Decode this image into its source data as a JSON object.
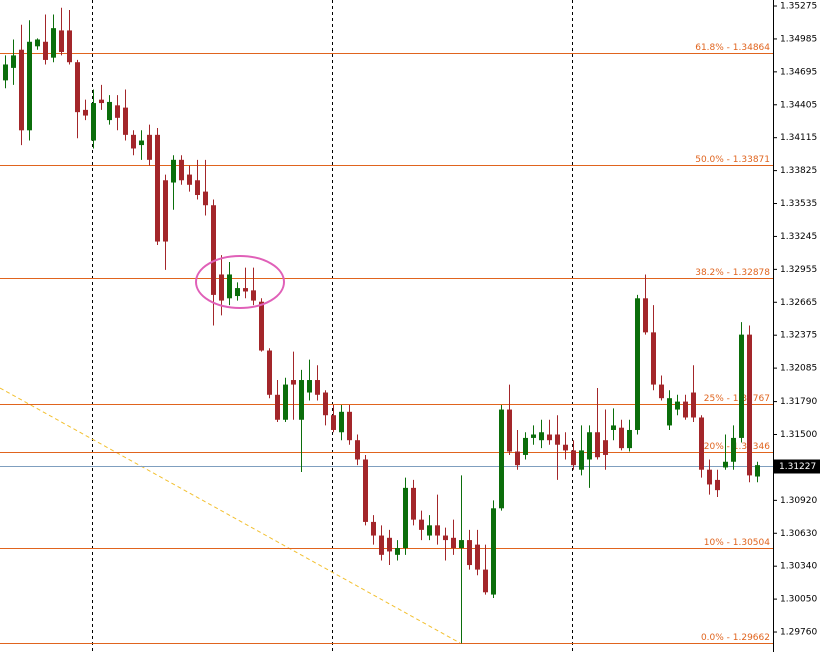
{
  "chart_data": {
    "type": "candlestick",
    "ylim": [
      1.29584,
      1.35328
    ],
    "yticks": [
      1.35275,
      1.34985,
      1.34695,
      1.34405,
      1.34115,
      1.33825,
      1.33535,
      1.33245,
      1.32955,
      1.32665,
      1.32375,
      1.32085,
      {
        "value": 1.3179,
        "label": "1.31790"
      },
      {
        "value": 1.315,
        "label": "1.31500"
      },
      {
        "value": 1.3092,
        "label": "1.30920"
      },
      {
        "value": 1.3063,
        "label": "1.30630"
      },
      {
        "value": 1.3034,
        "label": "1.30340"
      },
      {
        "value": 1.3005,
        "label": "1.30050"
      },
      {
        "value": 1.2976,
        "label": "1.29760"
      }
    ],
    "up_color": "#0b6e0b",
    "down_color": "#a3262a",
    "level_color": "#e0641e",
    "levels": [
      {
        "value": 1.34864,
        "label": "61.8% - 1.34864"
      },
      {
        "value": 1.33871,
        "label": "50.0% - 1.33871"
      },
      {
        "value": 1.32878,
        "label": "38.2% - 1.32878"
      },
      {
        "value": 1.31767,
        "label": "25% - 1.31767"
      },
      {
        "value": 1.31346,
        "label": "20% - 1.31346"
      },
      {
        "value": 1.30504,
        "label": "10% - 1.30504"
      },
      {
        "value": 1.29662,
        "label": "0.0% - 1.29662"
      }
    ],
    "current_price": 1.31227,
    "current_price_color": "#7f9fbf",
    "ohlc": [
      [
        1.3462,
        1.3484,
        1.3455,
        1.3476
      ],
      [
        1.3473,
        1.3498,
        1.3458,
        1.3484
      ],
      [
        1.3489,
        1.3511,
        1.3405,
        1.3418
      ],
      [
        1.3418,
        1.3515,
        1.3409,
        1.3496
      ],
      [
        1.3492,
        1.3499,
        1.3489,
        1.3498
      ],
      [
        1.3496,
        1.352,
        1.3476,
        1.348
      ],
      [
        1.3482,
        1.352,
        1.3478,
        1.3508
      ],
      [
        1.3506,
        1.3526,
        1.3484,
        1.3487
      ],
      [
        1.3506,
        1.3524,
        1.3476,
        1.3478
      ],
      [
        1.3478,
        1.348,
        1.3411,
        1.3434
      ],
      [
        1.3436,
        1.3445,
        1.3427,
        1.3431
      ],
      [
        1.3409,
        1.3454,
        1.3402,
        1.3442
      ],
      [
        1.3445,
        1.3458,
        1.3436,
        1.3442
      ],
      [
        1.3427,
        1.3449,
        1.3423,
        1.3443
      ],
      [
        1.344,
        1.3449,
        1.3418,
        1.3429
      ],
      [
        1.3438,
        1.3454,
        1.3409,
        1.3414
      ],
      [
        1.3414,
        1.3418,
        1.3396,
        1.3402
      ],
      [
        1.3405,
        1.3418,
        1.3392,
        1.3409
      ],
      [
        1.3414,
        1.3423,
        1.3387,
        1.3392
      ],
      [
        1.3414,
        1.342,
        1.3317,
        1.332
      ],
      [
        1.3374,
        1.3379,
        1.3295,
        1.332
      ],
      [
        1.3372,
        1.3396,
        1.3348,
        1.3392
      ],
      [
        1.3392,
        1.3396,
        1.337,
        1.3374
      ],
      [
        1.3379,
        1.3387,
        1.3364,
        1.337
      ],
      [
        1.3374,
        1.3392,
        1.3357,
        1.3361
      ],
      [
        1.3364,
        1.3392,
        1.3343,
        1.3352
      ],
      [
        1.3352,
        1.3357,
        1.3246,
        1.3273
      ],
      [
        1.3291,
        1.3308,
        1.3255,
        1.3268
      ],
      [
        1.327,
        1.3302,
        1.3264,
        1.3291
      ],
      [
        1.3272,
        1.3284,
        1.3268,
        1.3279
      ],
      [
        1.3279,
        1.3297,
        1.327,
        1.3276
      ],
      [
        1.3277,
        1.3297,
        1.3264,
        1.3268
      ],
      [
        1.3267,
        1.327,
        1.3223,
        1.3224
      ],
      [
        1.3224,
        1.3226,
        1.3182,
        1.3185
      ],
      [
        1.3185,
        1.3198,
        1.3161,
        1.3163
      ],
      [
        1.3163,
        1.32,
        1.3161,
        1.3194
      ],
      [
        1.3198,
        1.3223,
        1.3163,
        1.3194
      ],
      [
        1.3163,
        1.3207,
        1.3117,
        1.3198
      ],
      [
        1.3187,
        1.3216,
        1.318,
        1.3198
      ],
      [
        1.3198,
        1.3211,
        1.318,
        1.3185
      ],
      [
        1.3187,
        1.3189,
        1.3158,
        1.3167
      ],
      [
        1.3167,
        1.3176,
        1.3152,
        1.3154
      ],
      [
        1.3152,
        1.3176,
        1.3145,
        1.317
      ],
      [
        1.317,
        1.3176,
        1.3141,
        1.3145
      ],
      [
        1.3145,
        1.315,
        1.3123,
        1.3128
      ],
      [
        1.3128,
        1.3132,
        1.307,
        1.3073
      ],
      [
        1.3073,
        1.3079,
        1.3053,
        1.3061
      ],
      [
        1.3061,
        1.307,
        1.3039,
        1.3044
      ],
      [
        1.3059,
        1.3066,
        1.3035,
        1.3047
      ],
      [
        1.3044,
        1.3057,
        1.3039,
        1.305
      ],
      [
        1.305,
        1.3112,
        1.3044,
        1.3103
      ],
      [
        1.3103,
        1.311,
        1.307,
        1.3075
      ],
      [
        1.3075,
        1.3083,
        1.3057,
        1.3066
      ],
      [
        1.3061,
        1.3079,
        1.3057,
        1.307
      ],
      [
        1.307,
        1.3097,
        1.3053,
        1.3061
      ],
      [
        1.3061,
        1.3068,
        1.3039,
        1.3057
      ],
      [
        1.3059,
        1.3075,
        1.3044,
        1.305
      ],
      [
        1.305,
        1.3114,
        1.2966,
        1.3057
      ],
      [
        1.3057,
        1.3066,
        1.3031,
        1.3035
      ],
      [
        1.3053,
        1.3066,
        1.3026,
        1.3031
      ],
      [
        1.3031,
        1.3053,
        1.3009,
        1.3011
      ],
      [
        1.3009,
        1.3092,
        1.3006,
        1.3085
      ],
      [
        1.3085,
        1.3176,
        1.3083,
        1.3172
      ],
      [
        1.3172,
        1.3194,
        1.3132,
        1.3135
      ],
      [
        1.3135,
        1.3154,
        1.3119,
        1.3123
      ],
      [
        1.3132,
        1.3152,
        1.3128,
        1.3147
      ],
      [
        1.3147,
        1.3158,
        1.3141,
        1.315
      ],
      [
        1.3145,
        1.3163,
        1.3138,
        1.3152
      ],
      [
        1.315,
        1.3163,
        1.3141,
        1.3145
      ],
      [
        1.315,
        1.3167,
        1.311,
        1.3141
      ],
      [
        1.3141,
        1.3152,
        1.3128,
        1.3136
      ],
      [
        1.3136,
        1.3145,
        1.3119,
        1.3123
      ],
      [
        1.3119,
        1.3158,
        1.3114,
        1.3136
      ],
      [
        1.3128,
        1.3158,
        1.3103,
        1.3152
      ],
      [
        1.3152,
        1.3191,
        1.3128,
        1.313
      ],
      [
        1.3145,
        1.3172,
        1.3119,
        1.3132
      ],
      [
        1.3154,
        1.3173,
        1.3145,
        1.3158
      ],
      [
        1.3156,
        1.3163,
        1.3136,
        1.3138
      ],
      [
        1.3138,
        1.3163,
        1.3135,
        1.3154
      ],
      [
        1.3154,
        1.3273,
        1.315,
        1.327
      ],
      [
        1.327,
        1.3291,
        1.3238,
        1.324
      ],
      [
        1.324,
        1.3264,
        1.3189,
        1.3194
      ],
      [
        1.3194,
        1.3202,
        1.318,
        1.3182
      ],
      [
        1.3158,
        1.3189,
        1.3154,
        1.3182
      ],
      [
        1.3172,
        1.3185,
        1.3167,
        1.3179
      ],
      [
        1.3179,
        1.3185,
        1.3163,
        1.3165
      ],
      [
        1.3187,
        1.3211,
        1.3161,
        1.3165
      ],
      [
        1.3165,
        1.3167,
        1.3112,
        1.3119
      ],
      [
        1.3119,
        1.3128,
        1.3097,
        1.3106
      ],
      [
        1.311,
        1.3119,
        1.3095,
        1.3101
      ],
      [
        1.3121,
        1.315,
        1.3119,
        1.3126
      ],
      [
        1.3126,
        1.3158,
        1.3119,
        1.3147
      ],
      [
        1.3147,
        1.3249,
        1.3143,
        1.3238
      ],
      [
        1.3238,
        1.3246,
        1.3108,
        1.3114
      ],
      [
        1.3113,
        1.3126,
        1.3108,
        1.3123
      ]
    ]
  }
}
